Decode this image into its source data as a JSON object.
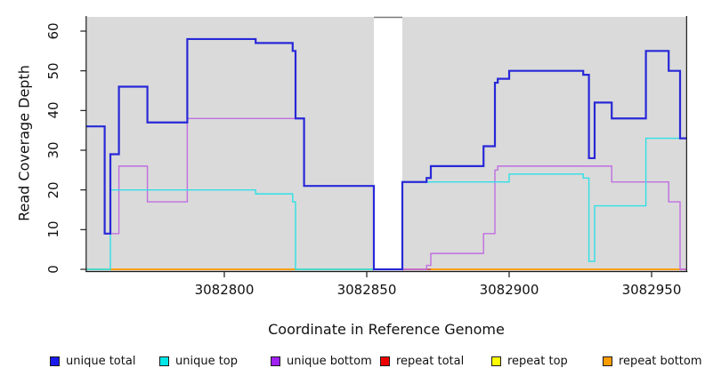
{
  "chart_data": {
    "type": "line",
    "line_style": "step",
    "title": "",
    "xlabel": "Coordinate in Reference Genome",
    "ylabel": "Read Coverage Depth",
    "x_ticks": [
      3082800,
      3082850,
      3082900,
      3082950
    ],
    "x_tick_labels": [
      "3082800",
      "3082850",
      "3082900",
      "3082950"
    ],
    "y_ticks": [
      0,
      10,
      20,
      30,
      40,
      50,
      60
    ],
    "y_tick_labels": [
      "0",
      "10",
      "20",
      "30",
      "40",
      "50",
      "60"
    ],
    "xlim": [
      3082751.5,
      3082962.3
    ],
    "ylim": [
      0,
      64
    ],
    "grid": false,
    "panel_bg": "#dadada",
    "gap_region": {
      "from": 3082852.5,
      "to": 3082862.5
    },
    "legend_position": "bottom",
    "legend": [
      {
        "label": "unique total",
        "color": "#1a1aee"
      },
      {
        "label": "unique top",
        "color": "#00e6e6"
      },
      {
        "label": "unique bottom",
        "color": "#a020f0"
      },
      {
        "label": "repeat total",
        "color": "#ee0000"
      },
      {
        "label": "repeat top",
        "color": "#ffff00"
      },
      {
        "label": "repeat bottom",
        "color": "#ff9d00"
      }
    ],
    "series": [
      {
        "name": "repeat total",
        "color": "#e00000",
        "width": 1.2,
        "steps": [
          [
            3082751.5,
            0
          ],
          [
            3082962.3,
            0
          ]
        ]
      },
      {
        "name": "repeat top",
        "color": "#ffff00",
        "width": 1.2,
        "steps": [
          [
            3082751.5,
            0
          ],
          [
            3082962.3,
            0
          ]
        ]
      },
      {
        "name": "repeat bottom",
        "color": "#ff9d00",
        "width": 1.8,
        "steps": [
          [
            3082751.5,
            0
          ],
          [
            3082962.3,
            0
          ]
        ]
      },
      {
        "name": "unique bottom",
        "color": "#c06ee0",
        "width": 1.4,
        "steps": [
          [
            3082751.5,
            36
          ],
          [
            3082758,
            9
          ],
          [
            3082763,
            26
          ],
          [
            3082773,
            17
          ],
          [
            3082787,
            38
          ],
          [
            3082828,
            21
          ],
          [
            3082852.5,
            0
          ],
          [
            3082871,
            1
          ],
          [
            3082872.5,
            4
          ],
          [
            3082891,
            9
          ],
          [
            3082895,
            25
          ],
          [
            3082896,
            26
          ],
          [
            3082936,
            22
          ],
          [
            3082956,
            17
          ],
          [
            3082960,
            0
          ],
          [
            3082962.3,
            0
          ]
        ]
      },
      {
        "name": "unique top",
        "color": "#2fe0e6",
        "width": 1.4,
        "steps": [
          [
            3082751.5,
            0
          ],
          [
            3082760,
            20
          ],
          [
            3082811,
            19
          ],
          [
            3082824,
            17
          ],
          [
            3082825,
            0
          ],
          [
            3082862.5,
            22
          ],
          [
            3082900,
            24
          ],
          [
            3082926,
            23
          ],
          [
            3082928,
            2
          ],
          [
            3082930,
            16
          ],
          [
            3082948,
            33
          ],
          [
            3082962.3,
            33
          ]
        ]
      },
      {
        "name": "unique total",
        "color": "#2828d8",
        "width": 2.2,
        "steps": [
          [
            3082751.5,
            36
          ],
          [
            3082758,
            9
          ],
          [
            3082760,
            29
          ],
          [
            3082763,
            46
          ],
          [
            3082773,
            37
          ],
          [
            3082787,
            58
          ],
          [
            3082811,
            57
          ],
          [
            3082824,
            55
          ],
          [
            3082825,
            38
          ],
          [
            3082828,
            21
          ],
          [
            3082852.5,
            0
          ],
          [
            3082862.5,
            22
          ],
          [
            3082871,
            23
          ],
          [
            3082872.5,
            26
          ],
          [
            3082891,
            31
          ],
          [
            3082895,
            47
          ],
          [
            3082896,
            48
          ],
          [
            3082900,
            50
          ],
          [
            3082926,
            49
          ],
          [
            3082928,
            28
          ],
          [
            3082930,
            42
          ],
          [
            3082936,
            38
          ],
          [
            3082948,
            55
          ],
          [
            3082956,
            50
          ],
          [
            3082960,
            33
          ],
          [
            3082962.3,
            33
          ]
        ]
      }
    ],
    "baseline_overlap_segments": [
      {
        "from": 3082751.5,
        "to": 3082760,
        "color": "#8fd195"
      },
      {
        "from": 3082825,
        "to": 3082852.5,
        "color": "#8fd195"
      },
      {
        "from": 3082862.5,
        "to": 3082872.5,
        "color": "#c8506e"
      },
      {
        "from": 3082960,
        "to": 3082962.3,
        "color": "#d667b8"
      }
    ]
  }
}
